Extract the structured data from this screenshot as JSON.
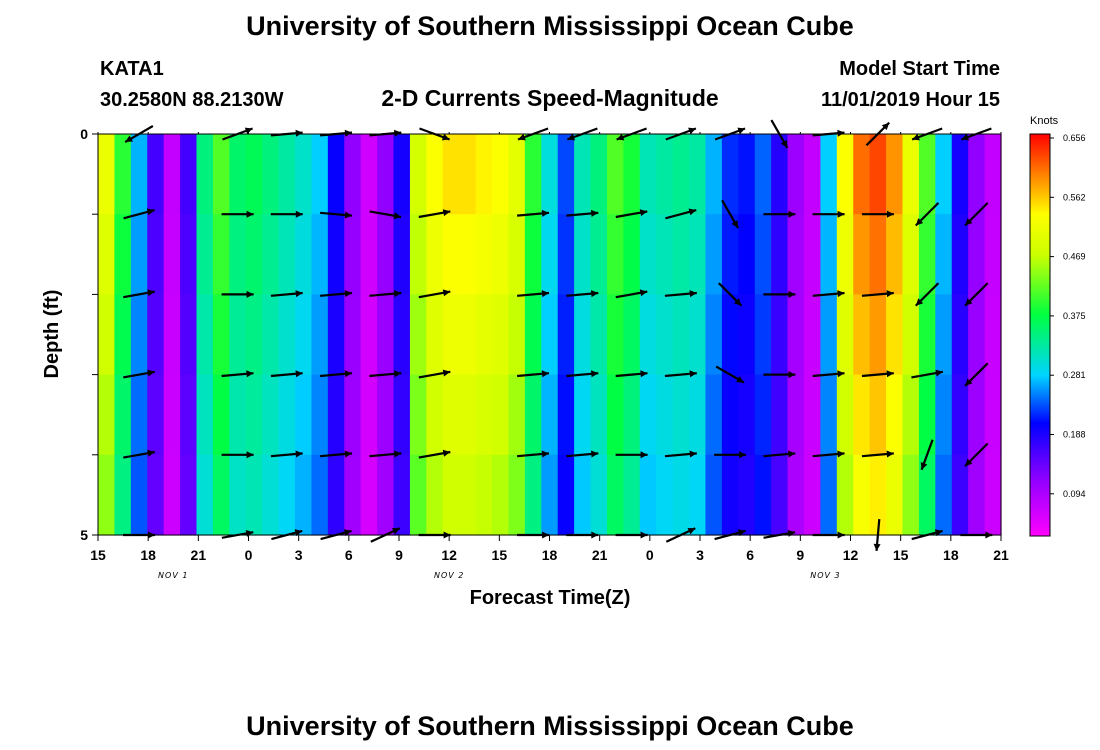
{
  "page": {
    "title": "University of Southern Mississippi Ocean Cube",
    "station": "KATA1",
    "coords": "30.2580N 88.2130W",
    "subtitle": "2-D Currents Speed-Magnitude",
    "model_start_label": "Model Start Time",
    "model_start_value": "11/01/2019 Hour 15",
    "footer_title": "University of Southern Mississippi Ocean Cube"
  },
  "chart_data": {
    "type": "heatmap",
    "title": "2-D Currents Speed-Magnitude",
    "xlabel": "Forecast Time(Z)",
    "ylabel": "Depth (ft)",
    "x_tick_labels": [
      "15",
      "18",
      "21",
      "0",
      "3",
      "6",
      "9",
      "12",
      "15",
      "18",
      "21",
      "0",
      "3",
      "6",
      "9",
      "12",
      "15",
      "18",
      "21"
    ],
    "date_labels": [
      "NOV 1",
      "NOV 2",
      "NOV 3"
    ],
    "y_tick_labels": [
      "0",
      "5"
    ],
    "ylim": [
      0,
      5
    ],
    "colorbar": {
      "unit": "Knots",
      "ticks": [
        "0.656",
        "0.562",
        "0.469",
        "0.375",
        "0.281",
        "0.188",
        "0.094"
      ],
      "min": 0.0,
      "max": 0.656
    },
    "columns": [
      {
        "hour": 15,
        "speed": 0.5
      },
      {
        "hour": 16,
        "speed": 0.38
      },
      {
        "hour": 17,
        "speed": 0.25
      },
      {
        "hour": 18,
        "speed": 0.14
      },
      {
        "hour": 19,
        "speed": 0.05
      },
      {
        "hour": 20,
        "speed": 0.14
      },
      {
        "hour": 21,
        "speed": 0.33
      },
      {
        "hour": 22,
        "speed": 0.4
      },
      {
        "hour": 23,
        "speed": 0.34
      },
      {
        "hour": 0,
        "speed": 0.35
      },
      {
        "hour": 1,
        "speed": 0.33
      },
      {
        "hour": 2,
        "speed": 0.31
      },
      {
        "hour": 3,
        "speed": 0.29
      },
      {
        "hour": 4,
        "speed": 0.26
      },
      {
        "hour": 5,
        "speed": 0.18
      },
      {
        "hour": 6,
        "speed": 0.09
      },
      {
        "hour": 7,
        "speed": 0.04
      },
      {
        "hour": 8,
        "speed": 0.09
      },
      {
        "hour": 9,
        "speed": 0.17
      },
      {
        "hour": 10,
        "speed": 0.47
      },
      {
        "hour": 11,
        "speed": 0.52
      },
      {
        "hour": 12,
        "speed": 0.54
      },
      {
        "hour": 13,
        "speed": 0.54
      },
      {
        "hour": 14,
        "speed": 0.53
      },
      {
        "hour": 15,
        "speed": 0.52
      },
      {
        "hour": 16,
        "speed": 0.49
      },
      {
        "hour": 17,
        "speed": 0.38
      },
      {
        "hour": 18,
        "speed": 0.28
      },
      {
        "hour": 19,
        "speed": 0.21
      },
      {
        "hour": 20,
        "speed": 0.3
      },
      {
        "hour": 21,
        "speed": 0.33
      },
      {
        "hour": 22,
        "speed": 0.4
      },
      {
        "hour": 23,
        "speed": 0.37
      },
      {
        "hour": 0,
        "speed": 0.3
      },
      {
        "hour": 1,
        "speed": 0.31
      },
      {
        "hour": 2,
        "speed": 0.32
      },
      {
        "hour": 3,
        "speed": 0.31
      },
      {
        "hour": 4,
        "speed": 0.25
      },
      {
        "hour": 5,
        "speed": 0.2
      },
      {
        "hour": 6,
        "speed": 0.19
      },
      {
        "hour": 7,
        "speed": 0.22
      },
      {
        "hour": 8,
        "speed": 0.16
      },
      {
        "hour": 9,
        "speed": 0.08
      },
      {
        "hour": 10,
        "speed": 0.05
      },
      {
        "hour": 11,
        "speed": 0.26
      },
      {
        "hour": 12,
        "speed": 0.52
      },
      {
        "hour": 13,
        "speed": 0.6
      },
      {
        "hour": 14,
        "speed": 0.62
      },
      {
        "hour": 15,
        "speed": 0.58
      },
      {
        "hour": 16,
        "speed": 0.5
      },
      {
        "hour": 17,
        "speed": 0.4
      },
      {
        "hour": 18,
        "speed": 0.26
      },
      {
        "hour": 19,
        "speed": 0.17
      },
      {
        "hour": 20,
        "speed": 0.09
      },
      {
        "hour": 21,
        "speed": 0.05
      }
    ],
    "vector_depths": [
      0,
      1,
      2,
      3,
      4,
      5
    ],
    "vector_column_indices": [
      2,
      8,
      11,
      14,
      17,
      20,
      26,
      29,
      32,
      35,
      38,
      41,
      44,
      47,
      50,
      53
    ],
    "vector_direction_deg": [
      [
        210,
        20,
        5,
        5,
        5,
        340,
        200,
        200,
        200,
        20,
        20,
        300,
        5,
        45,
        200,
        200
      ],
      [
        15,
        0,
        0,
        355,
        350,
        10,
        5,
        5,
        10,
        15,
        300,
        0,
        0,
        0,
        225,
        225
      ],
      [
        10,
        0,
        5,
        5,
        5,
        10,
        5,
        5,
        10,
        5,
        315,
        0,
        5,
        5,
        225,
        225
      ],
      [
        10,
        5,
        5,
        5,
        5,
        10,
        5,
        5,
        5,
        5,
        330,
        0,
        5,
        5,
        10,
        225
      ],
      [
        10,
        0,
        5,
        5,
        5,
        10,
        5,
        5,
        0,
        5,
        0,
        5,
        5,
        5,
        250,
        225
      ],
      [
        0,
        10,
        15,
        15,
        25,
        0,
        0,
        0,
        0,
        25,
        15,
        10,
        0,
        265,
        15,
        0
      ]
    ]
  }
}
